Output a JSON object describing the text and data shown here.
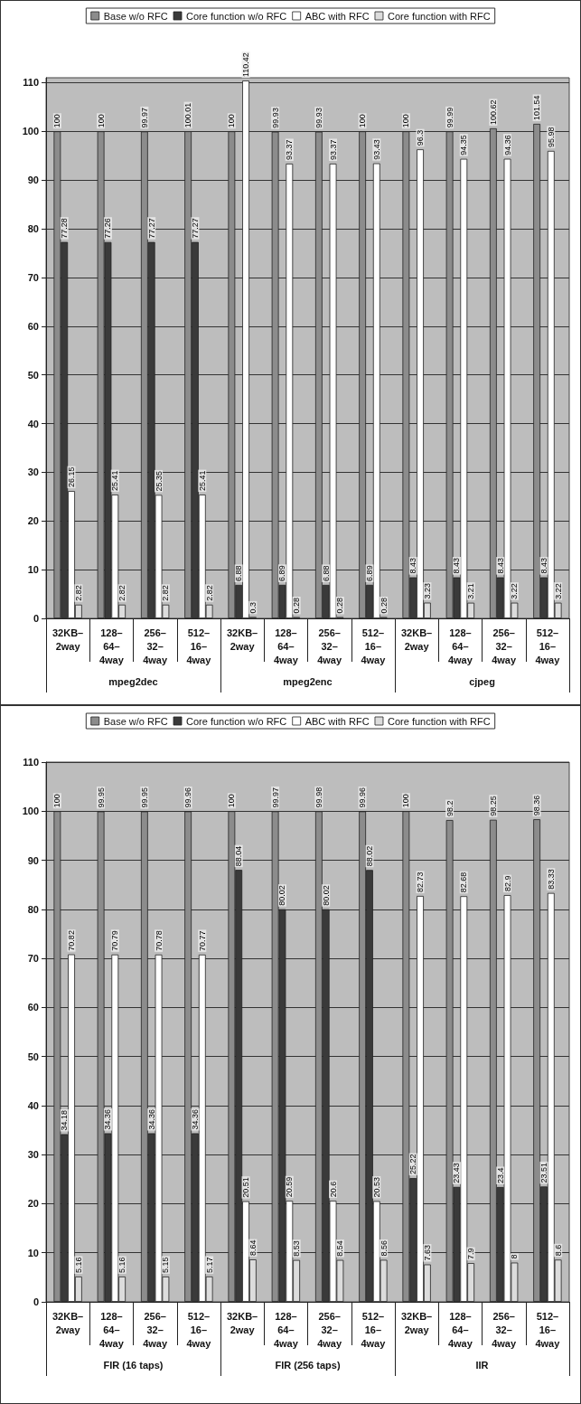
{
  "chart_data": [
    {
      "type": "bar",
      "categories": [
        "32KB–2way",
        "128–64–4way",
        "256–32–4way",
        "512–16–4way",
        "32KB–2way",
        "128–64–4way",
        "256–32–4way",
        "512–16–4way",
        "32KB–2way",
        "128–64–4way",
        "256–32–4way",
        "512–16–4way"
      ],
      "series": [
        {
          "name": "Base w/o RFC",
          "color": "#8c8c8c",
          "values": [
            100,
            100,
            99.97,
            100.01,
            100,
            99.93,
            99.93,
            100,
            100,
            99.99,
            100.62,
            101.54
          ]
        },
        {
          "name": "Core function w/o RFC",
          "color": "#3a3a3a",
          "values": [
            77.28,
            77.26,
            77.27,
            77.27,
            6.88,
            6.89,
            6.88,
            6.89,
            8.43,
            8.43,
            8.43,
            8.43
          ]
        },
        {
          "name": "ABC with RFC",
          "color": "#ffffff",
          "values": [
            26.15,
            25.41,
            25.35,
            25.41,
            110.42,
            93.37,
            93.37,
            93.43,
            96.3,
            94.35,
            94.36,
            95.98
          ]
        },
        {
          "name": "Core function with RFC",
          "color": "#dcdcdc",
          "values": [
            2.82,
            2.82,
            2.82,
            2.82,
            0.3,
            0.28,
            0.28,
            0.28,
            3.23,
            3.21,
            3.22,
            3.22
          ]
        }
      ],
      "annotations": [
        "mpeg2dec",
        "mpeg2enc",
        "cjpeg"
      ],
      "ylim": [
        0,
        111
      ],
      "yticks": [
        0,
        10,
        20,
        30,
        40,
        50,
        60,
        70,
        80,
        90,
        100,
        110
      ],
      "grid": "y",
      "legend": "top",
      "data_labels": true
    },
    {
      "type": "bar",
      "categories": [
        "32KB–2way",
        "128–64–4way",
        "256–32–4way",
        "512–16–4way",
        "32KB–2way",
        "128–64–4way",
        "256–32–4way",
        "512–16–4way",
        "32KB–2way",
        "128–64–4way",
        "256–32–4way",
        "512–16–4way"
      ],
      "series": [
        {
          "name": "Base w/o RFC",
          "color": "#8c8c8c",
          "values": [
            100,
            99.95,
            99.95,
            99.96,
            100,
            99.97,
            99.98,
            99.96,
            100,
            98.2,
            98.25,
            98.36
          ]
        },
        {
          "name": "Core function w/o RFC",
          "color": "#3a3a3a",
          "values": [
            34.18,
            34.36,
            34.36,
            34.36,
            88.04,
            80.02,
            80.02,
            88.02,
            25.22,
            23.43,
            23.4,
            23.51
          ]
        },
        {
          "name": "ABC with RFC",
          "color": "#ffffff",
          "values": [
            70.82,
            70.79,
            70.78,
            70.77,
            20.51,
            20.59,
            20.6,
            20.53,
            82.73,
            82.68,
            82.9,
            83.33
          ]
        },
        {
          "name": "Core function with RFC",
          "color": "#dcdcdc",
          "values": [
            5.16,
            5.16,
            5.15,
            5.17,
            8.64,
            8.53,
            8.54,
            8.56,
            7.63,
            7.9,
            8,
            8.6
          ]
        }
      ],
      "annotations": [
        "FIR (16 taps)",
        "FIR (256 taps)",
        "IIR"
      ],
      "ylim": [
        0,
        110
      ],
      "yticks": [
        0,
        10,
        20,
        30,
        40,
        50,
        60,
        70,
        80,
        90,
        100,
        110
      ],
      "grid": "y",
      "legend": "top",
      "data_labels": true
    }
  ]
}
